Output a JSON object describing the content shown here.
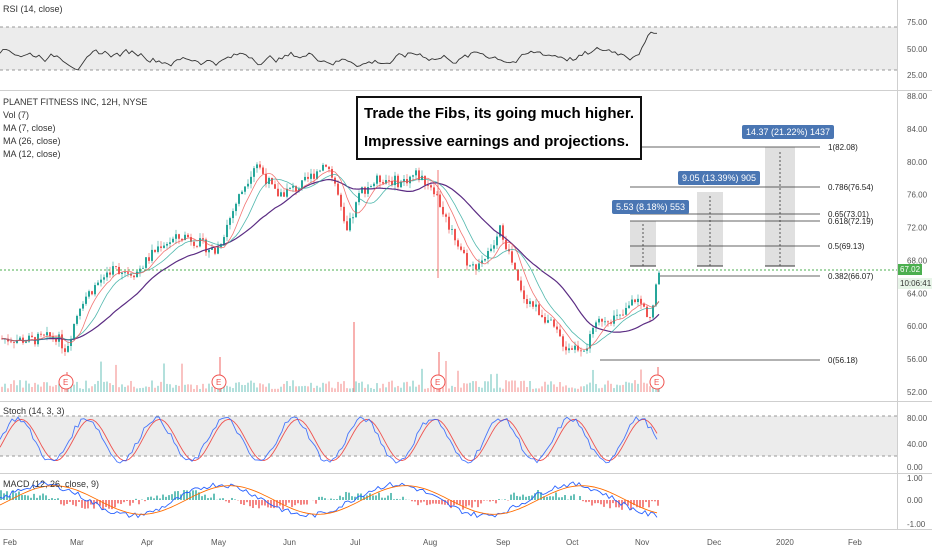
{
  "rsi": {
    "label": "RSI (14, close)",
    "ticks": [
      "75.00",
      "50.00",
      "25.00"
    ]
  },
  "main": {
    "legend": [
      "PLANET FITNESS INC, 12H, NYSE",
      "Vol (7)",
      "MA (7, close)",
      "MA (26, close)",
      "MA (12, close)"
    ],
    "price_ticks": [
      "88.00",
      "84.00",
      "80.00",
      "76.00",
      "72.00",
      "68.00",
      "64.00",
      "60.00",
      "56.00",
      "52.00"
    ],
    "last_price": "67.02",
    "countdown": "10:06:41",
    "callout_lines": [
      "Trade the Fibs, its going much higher.",
      "Impressive earnings and projections."
    ],
    "earnings_marker": "E"
  },
  "fib_levels": [
    {
      "label": "1(82.08)"
    },
    {
      "label": "0.786(76.54)"
    },
    {
      "label": "0.65(73.01)"
    },
    {
      "label": "0.618(72.19)"
    },
    {
      "label": "0.5(69.13)"
    },
    {
      "label": "0.382(66.07)"
    },
    {
      "label": "0(56.18)"
    }
  ],
  "measures": [
    "5.53 (8.18%) 553",
    "9.05 (13.39%) 905",
    "14.37 (21.22%) 1437"
  ],
  "stoch": {
    "label": "Stoch (14, 3, 3)",
    "ticks": [
      "80.00",
      "40.00",
      "0.00"
    ]
  },
  "macd": {
    "label": "MACD (12, 26, close, 9)",
    "ticks": [
      "1.00",
      "0.00",
      "-1.00"
    ]
  },
  "time_axis": [
    "Feb",
    "Mar",
    "Apr",
    "May",
    "Jun",
    "Jul",
    "Aug",
    "Sep",
    "Oct",
    "Nov",
    "Dec",
    "2020",
    "Feb"
  ],
  "colors": {
    "up": "#26a69a",
    "down": "#ef5350",
    "ma7": "#ef5350",
    "ma12": "#26a69a",
    "ma26": "#5b2c83",
    "price_line": "#4caf50",
    "measure": "#4a76b3"
  },
  "chart_data": {
    "type": "candlestick",
    "x": [
      "Feb",
      "Mar",
      "Apr",
      "May",
      "Jun",
      "Jul",
      "Aug",
      "Sep",
      "Oct",
      "Nov"
    ],
    "close": [
      58.5,
      57.5,
      66,
      70,
      78.5,
      78.5,
      78,
      67,
      58.5,
      67.02
    ],
    "ylim": [
      52,
      88
    ],
    "subplots": [
      "RSI",
      "Stoch",
      "MACD"
    ]
  }
}
